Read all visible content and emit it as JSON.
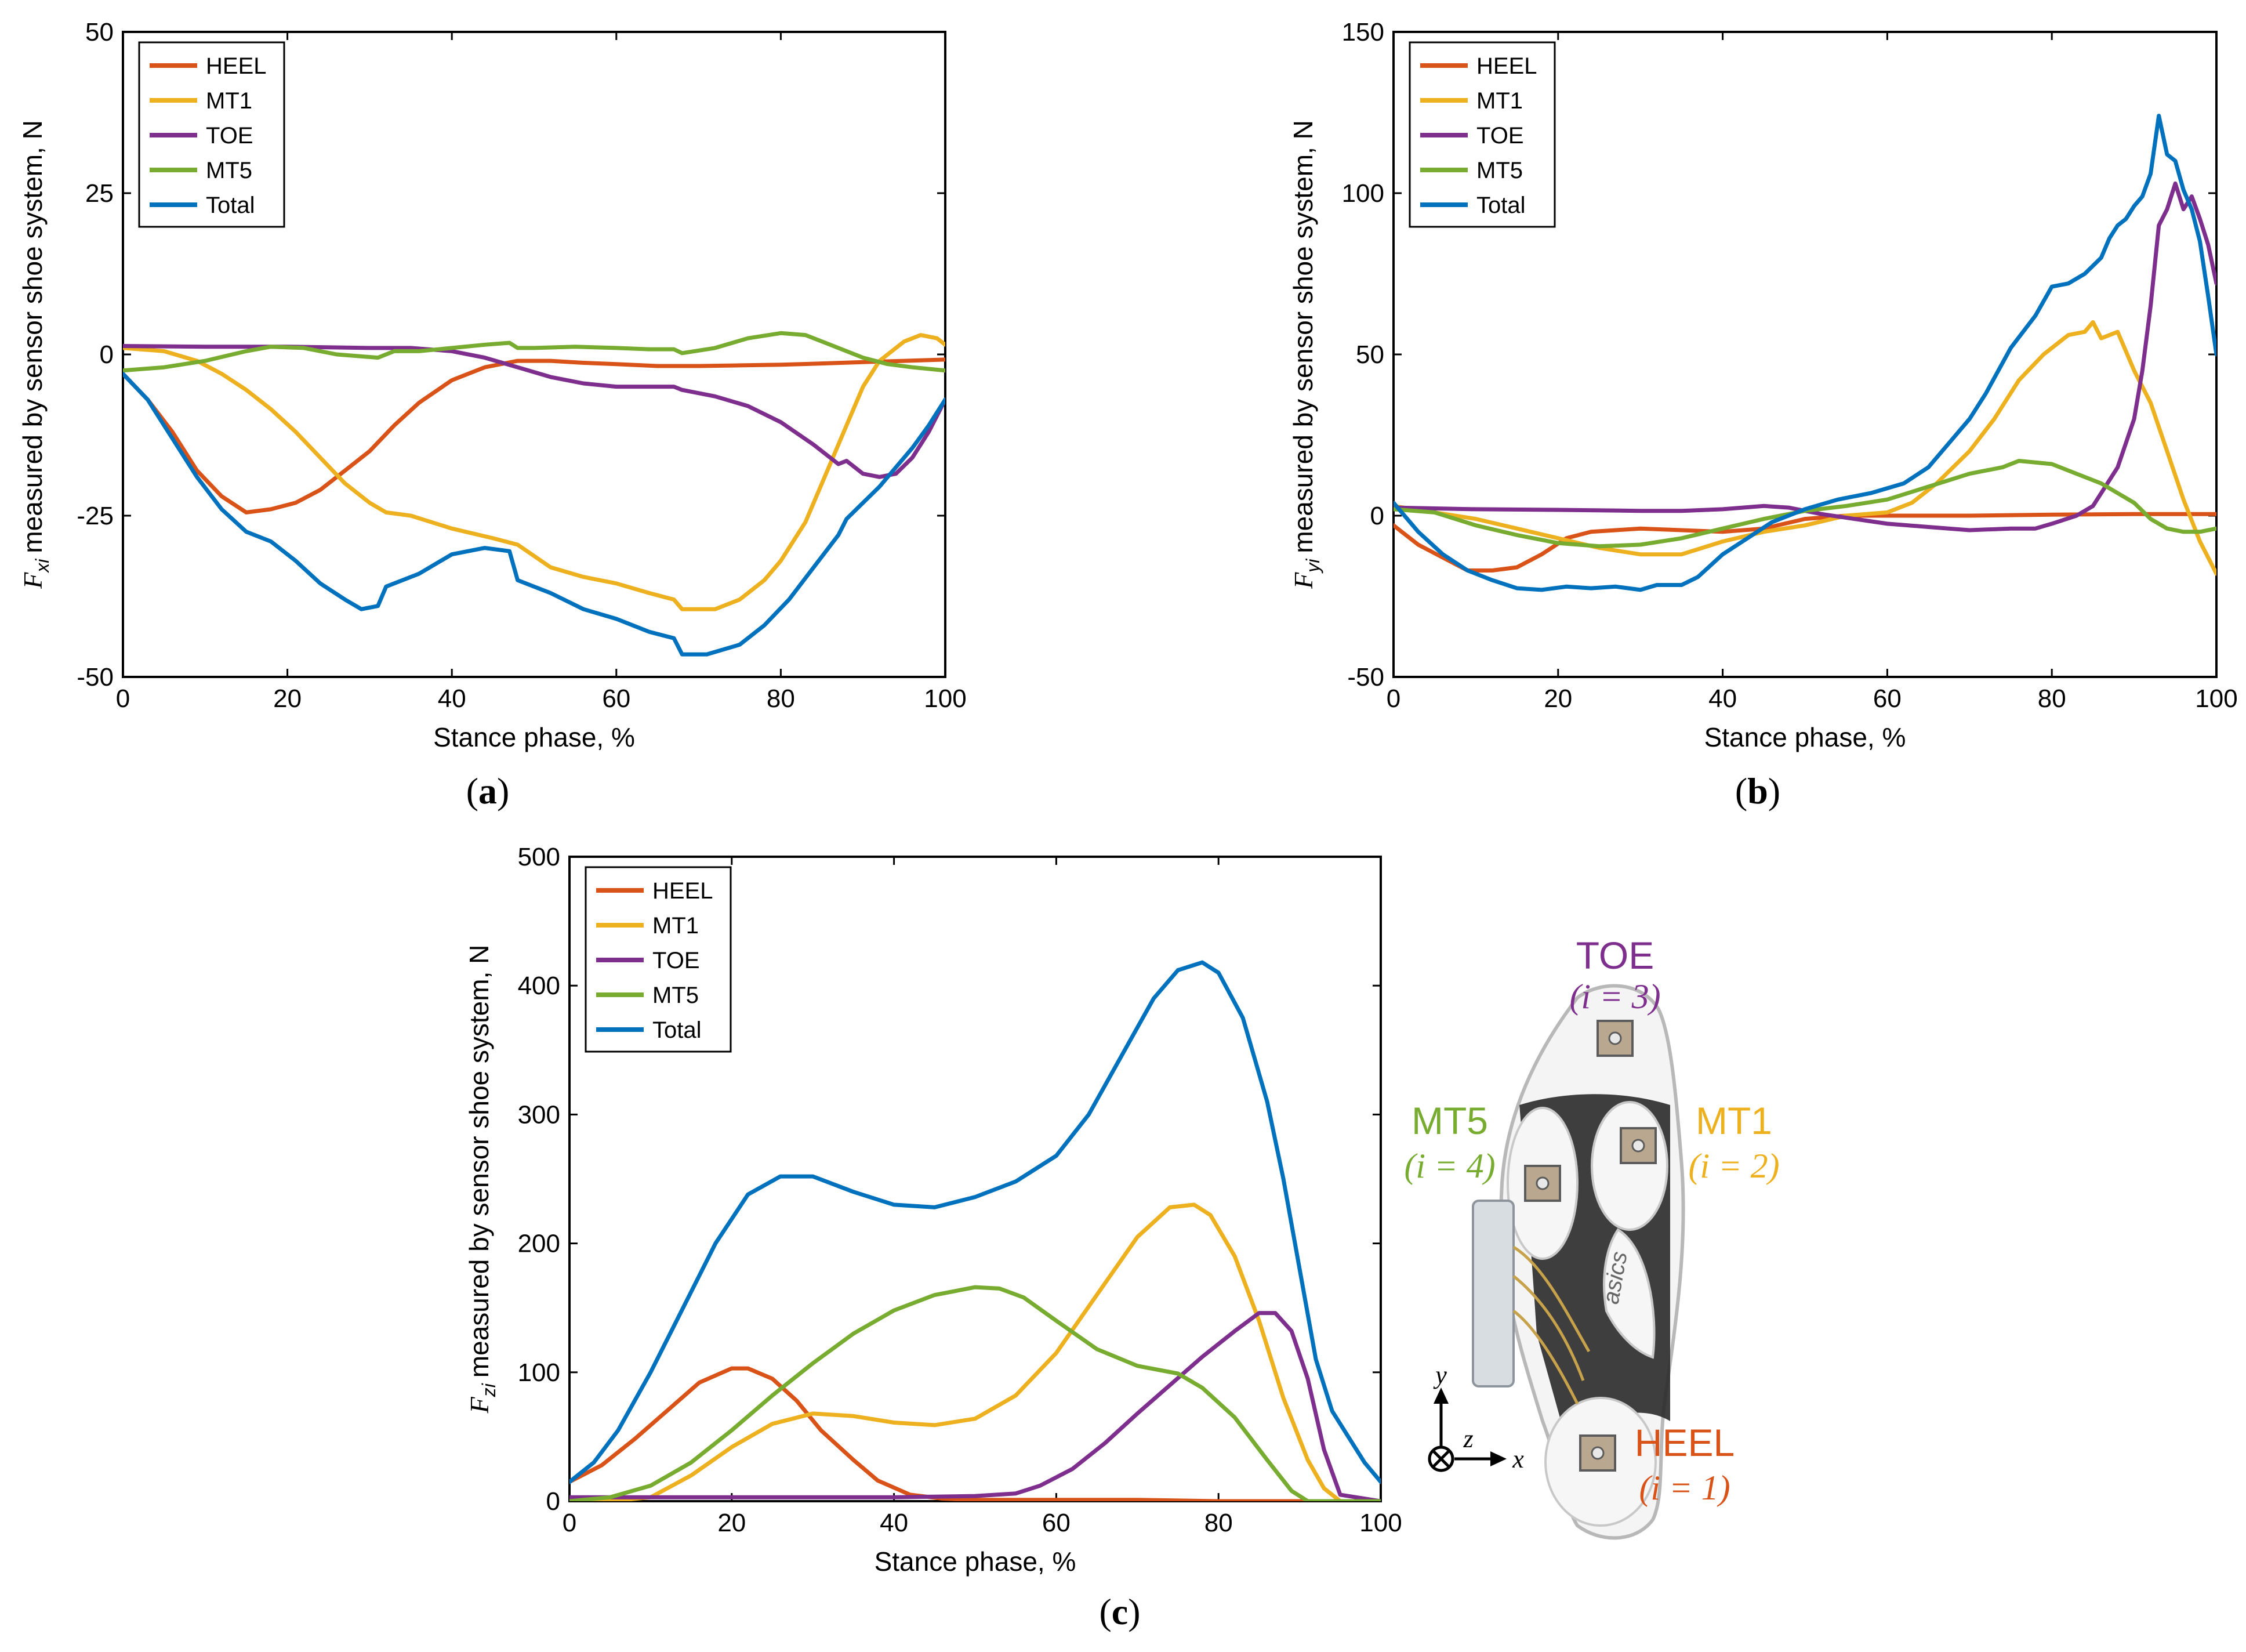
{
  "chart_data": [
    {
      "type": "line",
      "panel_label": "a",
      "xlabel": "Stance phase, %",
      "ylabel": "measured by sensor shoe system, N",
      "ylabel_symbol": "F",
      "ylabel_subscript": "xi",
      "xlim": [
        0,
        100
      ],
      "ylim": [
        -50,
        50
      ],
      "xticks": [
        "0",
        "20",
        "40",
        "60",
        "80",
        "100"
      ],
      "yticks": [
        "-50",
        "-25",
        "0",
        "25",
        "50"
      ],
      "legend_position": "top-left",
      "series": [
        {
          "name": "HEEL",
          "color": "#d95319",
          "x": [
            0,
            3,
            6,
            9,
            12,
            15,
            18,
            21,
            24,
            27,
            30,
            33,
            36,
            40,
            44,
            48,
            52,
            56,
            60,
            65,
            70,
            75,
            80,
            85,
            90,
            95,
            100
          ],
          "y": [
            -3,
            -7,
            -12,
            -18,
            -22,
            -24.5,
            -24,
            -23,
            -21,
            -18,
            -15,
            -11,
            -7.5,
            -4,
            -2,
            -1,
            -1,
            -1.3,
            -1.5,
            -1.8,
            -1.8,
            -1.7,
            -1.6,
            -1.4,
            -1.2,
            -1,
            -0.8
          ]
        },
        {
          "name": "MT1",
          "color": "#edb120",
          "x": [
            0,
            5,
            9,
            12,
            15,
            18,
            21,
            24,
            27,
            30,
            32,
            35,
            40,
            45,
            48,
            52,
            56,
            60,
            64,
            67,
            68,
            72,
            75,
            78,
            80,
            83,
            86,
            88,
            90,
            92,
            95,
            97,
            99,
            100
          ],
          "y": [
            1,
            0.5,
            -1,
            -3,
            -5.5,
            -8.5,
            -12,
            -16,
            -20,
            -23,
            -24.5,
            -25,
            -27,
            -28.5,
            -29.5,
            -33,
            -34.5,
            -35.5,
            -37,
            -38,
            -39.5,
            -39.5,
            -38,
            -35,
            -32,
            -26,
            -17,
            -11,
            -5,
            -1,
            2,
            3,
            2.5,
            1.5
          ]
        },
        {
          "name": "TOE",
          "color": "#7e2f8e",
          "x": [
            0,
            10,
            20,
            30,
            35,
            40,
            44,
            48,
            52,
            56,
            60,
            64,
            67,
            68,
            72,
            76,
            80,
            84,
            87,
            88,
            90,
            92,
            94,
            96,
            98,
            100
          ],
          "y": [
            1.3,
            1.2,
            1.2,
            1,
            1,
            0.5,
            -0.5,
            -2,
            -3.5,
            -4.5,
            -5,
            -5,
            -5,
            -5.5,
            -6.5,
            -8,
            -10.5,
            -14,
            -17,
            -16.5,
            -18.5,
            -19,
            -18.5,
            -16,
            -12,
            -7
          ]
        },
        {
          "name": "MT5",
          "color": "#77ac30",
          "x": [
            0,
            5,
            10,
            15,
            18,
            22,
            26,
            31,
            33,
            36,
            40,
            44,
            47,
            48,
            50,
            55,
            60,
            64,
            67,
            68,
            72,
            76,
            80,
            83,
            86,
            90,
            93,
            96,
            100
          ],
          "y": [
            -2.5,
            -2,
            -1,
            0.5,
            1.2,
            1,
            0,
            -0.5,
            0.5,
            0.5,
            1,
            1.5,
            1.8,
            1,
            1,
            1.2,
            1,
            0.8,
            0.8,
            0.2,
            1,
            2.5,
            3.3,
            3,
            1.5,
            -0.5,
            -1.5,
            -2,
            -2.5
          ]
        },
        {
          "name": "Total",
          "color": "#0072bd",
          "x": [
            0,
            3,
            6,
            9,
            12,
            15,
            18,
            21,
            24,
            27,
            29,
            31,
            32,
            36,
            40,
            44,
            47,
            48,
            52,
            56,
            60,
            64,
            67,
            68,
            71,
            75,
            78,
            81,
            84,
            87,
            88,
            90,
            92,
            94,
            96,
            98,
            100
          ],
          "y": [
            -3,
            -7,
            -13,
            -19,
            -24,
            -27.5,
            -29,
            -32,
            -35.5,
            -38,
            -39.5,
            -39,
            -36,
            -34,
            -31,
            -30,
            -30.5,
            -35,
            -37,
            -39.5,
            -41,
            -43,
            -44,
            -46.5,
            -46.5,
            -45,
            -42,
            -38,
            -33,
            -28,
            -25.5,
            -23,
            -20.5,
            -17.5,
            -14.5,
            -11,
            -7
          ]
        }
      ]
    },
    {
      "type": "line",
      "panel_label": "b",
      "xlabel": "Stance phase, %",
      "ylabel": "measured by sensor shoe system, N",
      "ylabel_symbol": "F",
      "ylabel_subscript": "yi",
      "xlim": [
        0,
        100
      ],
      "ylim": [
        -50,
        150
      ],
      "xticks": [
        "0",
        "20",
        "40",
        "60",
        "80",
        "100"
      ],
      "yticks": [
        "-50",
        "0",
        "50",
        "100",
        "150"
      ],
      "legend_position": "top-left",
      "series": [
        {
          "name": "HEEL",
          "color": "#d95319",
          "x": [
            0,
            3,
            6,
            9,
            12,
            15,
            18,
            21,
            24,
            27,
            30,
            35,
            40,
            45,
            50,
            55,
            60,
            70,
            80,
            90,
            100
          ],
          "y": [
            -3,
            -9,
            -13,
            -17,
            -17,
            -16,
            -12,
            -7,
            -5,
            -4.5,
            -4,
            -4.5,
            -5,
            -4,
            -1,
            0,
            0,
            0,
            0.3,
            0.5,
            0.5
          ]
        },
        {
          "name": "MT1",
          "color": "#edb120",
          "x": [
            0,
            5,
            10,
            15,
            20,
            25,
            30,
            35,
            40,
            45,
            50,
            55,
            60,
            63,
            66,
            70,
            73,
            76,
            79,
            82,
            84,
            85,
            86,
            88,
            90,
            92,
            94,
            96,
            98,
            100
          ],
          "y": [
            3,
            1,
            -1,
            -4,
            -7,
            -10,
            -12,
            -12,
            -8,
            -5,
            -3,
            0,
            1,
            4,
            10,
            20,
            30,
            42,
            50,
            56,
            57,
            60,
            55,
            57,
            45,
            35,
            20,
            5,
            -8,
            -18
          ]
        },
        {
          "name": "TOE",
          "color": "#7e2f8e",
          "x": [
            0,
            10,
            20,
            30,
            35,
            40,
            45,
            48,
            52,
            56,
            60,
            65,
            70,
            75,
            78,
            80,
            83,
            85,
            86,
            88,
            90,
            91,
            92,
            93,
            94,
            95,
            96,
            97,
            98,
            99,
            100
          ],
          "y": [
            2.5,
            2,
            1.8,
            1.5,
            1.5,
            2,
            3,
            2.5,
            0.5,
            -1,
            -2.5,
            -3.5,
            -4.5,
            -4,
            -4,
            -2.5,
            0,
            3,
            7,
            15,
            30,
            45,
            65,
            90,
            95,
            103,
            95,
            99,
            92,
            84,
            72
          ]
        },
        {
          "name": "MT5",
          "color": "#77ac30",
          "x": [
            0,
            5,
            10,
            15,
            20,
            25,
            30,
            35,
            40,
            45,
            50,
            55,
            60,
            65,
            70,
            74,
            76,
            80,
            83,
            86,
            88,
            90,
            92,
            94,
            96,
            98,
            100
          ],
          "y": [
            2,
            1,
            -3,
            -6,
            -8.5,
            -9.5,
            -9,
            -7,
            -4,
            -1,
            1.5,
            3,
            5,
            9,
            13,
            15,
            17,
            16,
            13,
            10,
            7,
            4,
            -1,
            -4,
            -5,
            -5,
            -4
          ]
        },
        {
          "name": "Total",
          "color": "#0072bd",
          "x": [
            0,
            3,
            6,
            9,
            12,
            15,
            18,
            21,
            24,
            27,
            30,
            32,
            35,
            37,
            40,
            43,
            46,
            50,
            54,
            58,
            62,
            65,
            68,
            70,
            72,
            75,
            78,
            80,
            82,
            84,
            86,
            87,
            88,
            89,
            90,
            91,
            92,
            93,
            94,
            95,
            96,
            97,
            98,
            99,
            100
          ],
          "y": [
            4,
            -5,
            -12,
            -17,
            -20,
            -22.5,
            -23,
            -22,
            -22.5,
            -22,
            -23,
            -21.5,
            -21.5,
            -19,
            -12,
            -7,
            -2,
            2,
            5,
            7,
            10,
            15,
            24,
            30,
            38,
            52,
            62,
            71,
            72,
            75,
            80,
            86,
            90,
            92,
            96,
            99,
            106,
            124,
            112,
            110,
            101,
            95,
            85,
            68,
            50
          ]
        }
      ]
    },
    {
      "type": "line",
      "panel_label": "c",
      "xlabel": "Stance phase, %",
      "ylabel": "measured by sensor shoe system, N",
      "ylabel_symbol": "F",
      "ylabel_subscript": "zi",
      "xlim": [
        0,
        100
      ],
      "ylim": [
        0,
        500
      ],
      "xticks": [
        "0",
        "20",
        "40",
        "60",
        "80",
        "100"
      ],
      "yticks": [
        "0",
        "100",
        "200",
        "300",
        "400",
        "500"
      ],
      "legend_position": "top-left",
      "series": [
        {
          "name": "HEEL",
          "color": "#d95319",
          "x": [
            0,
            4,
            8,
            12,
            16,
            20,
            22,
            25,
            28,
            31,
            35,
            38,
            42,
            46,
            50,
            60,
            70,
            80,
            90,
            100
          ],
          "y": [
            15,
            28,
            48,
            70,
            92,
            103,
            103,
            95,
            78,
            55,
            32,
            16,
            5,
            2,
            1,
            1,
            1,
            0,
            0,
            0
          ]
        },
        {
          "name": "MT1",
          "color": "#edb120",
          "x": [
            0,
            5,
            10,
            15,
            20,
            25,
            30,
            35,
            40,
            45,
            50,
            55,
            60,
            65,
            70,
            74,
            77,
            79,
            82,
            85,
            88,
            91,
            93,
            95,
            100
          ],
          "y": [
            0,
            0,
            3,
            20,
            42,
            60,
            68,
            66,
            61,
            59,
            64,
            82,
            115,
            160,
            205,
            228,
            230,
            222,
            190,
            140,
            80,
            32,
            10,
            0,
            0
          ]
        },
        {
          "name": "TOE",
          "color": "#7e2f8e",
          "x": [
            0,
            10,
            20,
            30,
            40,
            50,
            55,
            58,
            62,
            66,
            70,
            74,
            78,
            82,
            85,
            87,
            89,
            91,
            93,
            95,
            100
          ],
          "y": [
            3,
            3,
            3,
            3,
            3,
            4,
            6,
            12,
            25,
            45,
            68,
            90,
            112,
            132,
            146,
            146,
            132,
            95,
            40,
            5,
            0
          ]
        },
        {
          "name": "MT5",
          "color": "#77ac30",
          "x": [
            0,
            5,
            10,
            15,
            20,
            25,
            30,
            35,
            40,
            45,
            50,
            53,
            56,
            60,
            65,
            70,
            75,
            78,
            82,
            86,
            89,
            91,
            93,
            100
          ],
          "y": [
            0,
            3,
            12,
            30,
            55,
            82,
            107,
            130,
            148,
            160,
            166,
            165,
            158,
            140,
            118,
            105,
            99,
            88,
            65,
            32,
            8,
            0,
            0,
            0
          ]
        },
        {
          "name": "Total",
          "color": "#0072bd",
          "x": [
            0,
            3,
            6,
            10,
            14,
            18,
            22,
            26,
            30,
            35,
            40,
            45,
            50,
            55,
            60,
            64,
            68,
            72,
            75,
            78,
            80,
            83,
            86,
            88,
            90,
            92,
            94,
            96,
            98,
            100
          ],
          "y": [
            15,
            30,
            55,
            100,
            150,
            200,
            238,
            252,
            252,
            240,
            230,
            228,
            236,
            248,
            268,
            300,
            345,
            390,
            412,
            418,
            410,
            375,
            310,
            250,
            180,
            110,
            70,
            50,
            30,
            15
          ]
        }
      ]
    }
  ],
  "insole_annotation": {
    "toe": {
      "name": "TOE",
      "index": "(i = 3)"
    },
    "mt5": {
      "name": "MT5",
      "index": "(i = 4)"
    },
    "mt1": {
      "name": "MT1",
      "index": "(i = 2)"
    },
    "heel": {
      "name": "HEEL",
      "index": "(i = 1)"
    },
    "axes": {
      "y": "y",
      "z": "z",
      "x": "x"
    },
    "insole_brand_text": "asics"
  }
}
